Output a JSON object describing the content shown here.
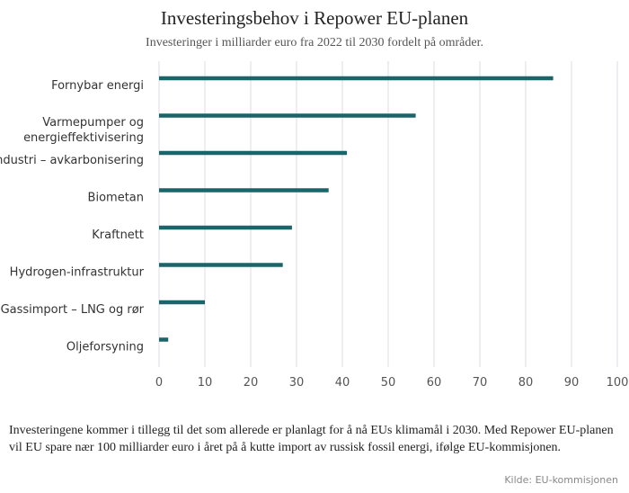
{
  "title": "Investeringsbehov i Repower EU-planen",
  "subtitle": "Investeringer i milliarder euro fra 2022 til 2030 fordelt på områder.",
  "note": "Investeringene kommer i tillegg til det som allerede er planlagt for å nå EUs klimamål i 2030. Med Repower EU-planen vil EU spare nær 100 milliarder euro i året på å kutte import av russisk fossil energi, ifølge EU-kommisjonen.",
  "source": "Kilde: EU-kommisjonen",
  "chart_data": {
    "type": "bar",
    "orientation": "horizontal",
    "categories": [
      [
        "Fornybar energi"
      ],
      [
        "Varmepumper og",
        "energieffektivisering"
      ],
      [
        "Industri – avkarbonisering"
      ],
      [
        "Biometan"
      ],
      [
        "Kraftnett"
      ],
      [
        "Hydrogen-infrastruktur"
      ],
      [
        "Gassimport – LNG og rør"
      ],
      [
        "Oljeforsyning"
      ]
    ],
    "values": [
      86,
      56,
      41,
      37,
      29,
      27,
      10,
      2
    ],
    "xlim": [
      0,
      100
    ],
    "xticks": [
      0,
      10,
      20,
      30,
      40,
      50,
      60,
      70,
      80,
      90,
      100
    ],
    "grid": "vertical",
    "bar_color": "#1a6569"
  }
}
